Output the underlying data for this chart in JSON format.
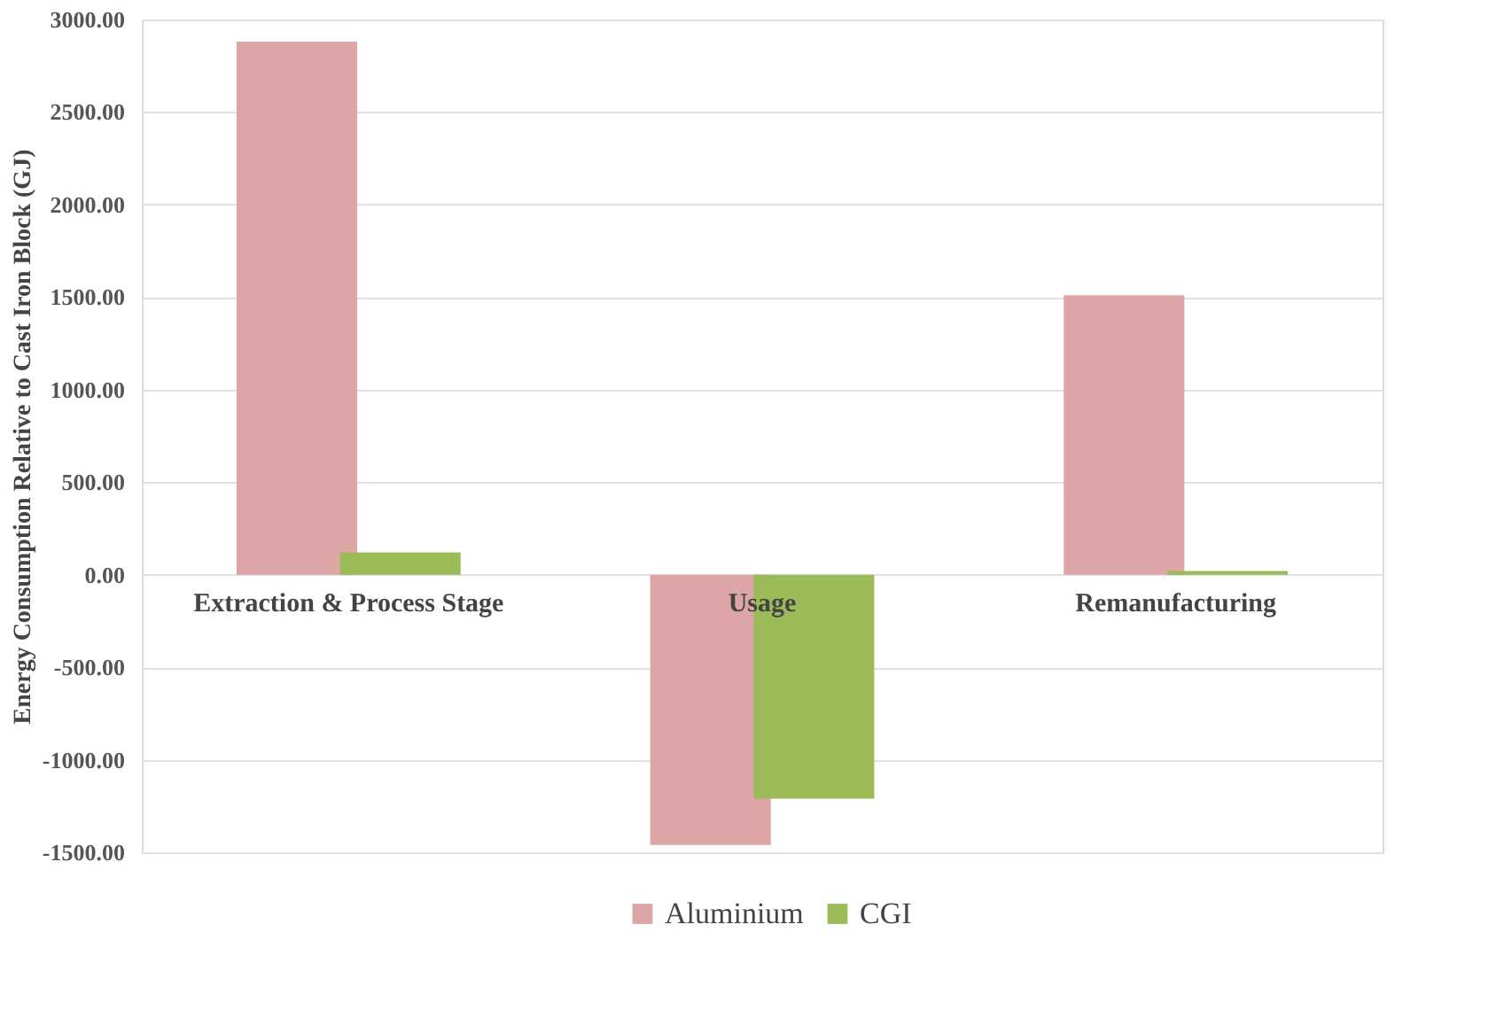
{
  "chart_data": {
    "type": "bar",
    "ylabel": "Energy Consumption Relative to Cast Iron Block (GJ)",
    "categories": [
      "Extraction & Process Stage",
      "Usage",
      "Remanufacturing"
    ],
    "series": [
      {
        "name": "Aluminium",
        "color": "#dda5a5",
        "values": [
          2880,
          -1460,
          1510
        ]
      },
      {
        "name": "CGI",
        "color": "#9bbb59",
        "values": [
          120,
          -1210,
          20
        ]
      }
    ],
    "ylim": [
      -1500,
      3000
    ],
    "yticks": [
      {
        "value": -1500,
        "label": "-1500.00"
      },
      {
        "value": -1000,
        "label": "-1000.00"
      },
      {
        "value": -500,
        "label": "-500.00"
      },
      {
        "value": 0,
        "label": "0.00"
      },
      {
        "value": 500,
        "label": "500.00"
      },
      {
        "value": 1000,
        "label": "1000.00"
      },
      {
        "value": 1500,
        "label": "1500.00"
      },
      {
        "value": 2000,
        "label": "2000.00"
      },
      {
        "value": 2500,
        "label": "2500.00"
      },
      {
        "value": 3000,
        "label": "3000.00"
      }
    ],
    "grid": "y",
    "legend": "bottom"
  }
}
